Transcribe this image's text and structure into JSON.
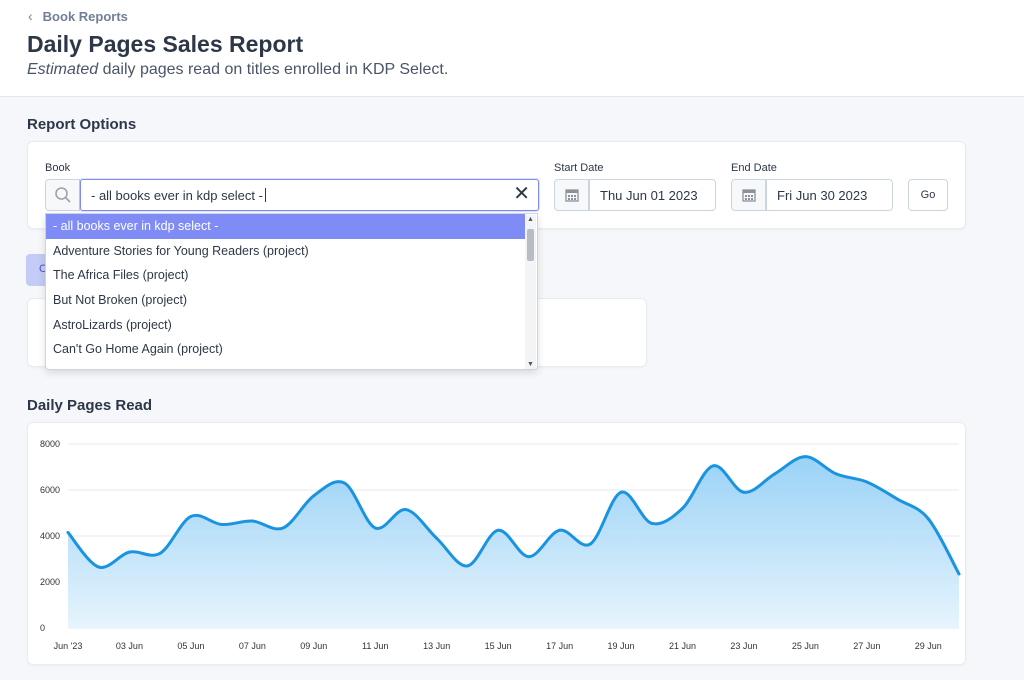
{
  "breadcrumb": {
    "back_label": "Book Reports"
  },
  "header": {
    "title": "Daily Pages Sales Report",
    "subtitle_em": "Estimated",
    "subtitle_rest": " daily pages read on titles enrolled in KDP Select."
  },
  "report_options": {
    "title": "Report Options",
    "book_label": "Book",
    "book_value": "- all books ever in kdp select -",
    "start_label": "Start Date",
    "start_value": "Thu Jun 01 2023",
    "end_label": "End Date",
    "end_value": "Fri Jun 30 2023",
    "go_label": "Go"
  },
  "dropdown": {
    "options": [
      "- all books ever in kdp select -",
      "Adventure Stories for Young Readers (project)",
      "The Africa Files (project)",
      "But Not Broken (project)",
      "AstroLizards (project)",
      "Can't Go Home Again (project)"
    ],
    "selected_index": 0
  },
  "hidden_tab": {
    "label": "C"
  },
  "colors": {
    "accent": "#7f8cf5",
    "line": "#1a94e0",
    "fill_top": "#8fcdf5",
    "fill_bottom": "#e4f3fd"
  },
  "icons": {
    "back": "chevron-left-icon",
    "search": "search-icon",
    "clear": "close-icon",
    "calendar": "calendar-icon"
  },
  "chart_data": {
    "type": "area",
    "title": "Daily Pages Read",
    "ylim": [
      0,
      8000
    ],
    "yticks": [
      "0",
      "2000",
      "4000",
      "6000",
      "8000"
    ],
    "xticks": [
      "Jun '23",
      "03 Jun",
      "05 Jun",
      "07 Jun",
      "09 Jun",
      "11 Jun",
      "13 Jun",
      "15 Jun",
      "17 Jun",
      "19 Jun",
      "21 Jun",
      "23 Jun",
      "25 Jun",
      "27 Jun",
      "29 Jun"
    ],
    "x": [
      "2023-06-01",
      "2023-06-02",
      "2023-06-03",
      "2023-06-04",
      "2023-06-05",
      "2023-06-06",
      "2023-06-07",
      "2023-06-08",
      "2023-06-09",
      "2023-06-10",
      "2023-06-11",
      "2023-06-12",
      "2023-06-13",
      "2023-06-14",
      "2023-06-15",
      "2023-06-16",
      "2023-06-17",
      "2023-06-18",
      "2023-06-19",
      "2023-06-20",
      "2023-06-21",
      "2023-06-22",
      "2023-06-23",
      "2023-06-24",
      "2023-06-25",
      "2023-06-26",
      "2023-06-27",
      "2023-06-28",
      "2023-06-29",
      "2023-06-30"
    ],
    "values": [
      4150,
      2650,
      3300,
      3250,
      4850,
      4500,
      4650,
      4350,
      5750,
      6300,
      4350,
      5150,
      3900,
      2700,
      4250,
      3100,
      4250,
      3650,
      5900,
      4550,
      5200,
      7050,
      5900,
      6700,
      7450,
      6700,
      6350,
      5600,
      4750,
      2350
    ]
  }
}
